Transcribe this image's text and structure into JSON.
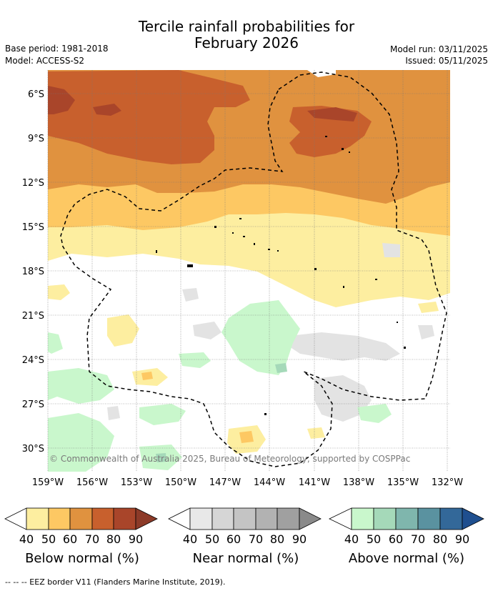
{
  "header": {
    "title_line1": "Tercile rainfall probabilities for",
    "title_line2": "February 2026",
    "base_period": "Base period: 1981-2018",
    "model": "Model: ACCESS-S2",
    "model_run": "Model run: 03/11/2025",
    "issued": "Issued: 05/11/2025"
  },
  "map": {
    "lat_labels": [
      "6°S",
      "9°S",
      "12°S",
      "15°S",
      "18°S",
      "21°S",
      "24°S",
      "27°S",
      "30°S"
    ],
    "lon_labels": [
      "159°W",
      "156°W",
      "153°W",
      "150°W",
      "147°W",
      "144°W",
      "141°W",
      "138°W",
      "135°W",
      "132°W"
    ],
    "copyright": "© Commonwealth of Australia 2025, Bureau of Meteorology, supported by COSPPac"
  },
  "legends": [
    {
      "title": "Below normal (%)",
      "ticks": [
        "40",
        "50",
        "60",
        "70",
        "80",
        "90"
      ],
      "colors": [
        "#fdeea0",
        "#fdc863",
        "#e0923f",
        "#c8602d",
        "#a9452a",
        "#8c3a28"
      ]
    },
    {
      "title": "Near normal (%)",
      "ticks": [
        "40",
        "50",
        "60",
        "70",
        "80",
        "90"
      ],
      "colors": [
        "#e8e8e8",
        "#d6d6d6",
        "#c4c4c4",
        "#b2b2b2",
        "#a0a0a0",
        "#8a8a8a"
      ]
    },
    {
      "title": "Above normal (%)",
      "ticks": [
        "40",
        "50",
        "60",
        "70",
        "80",
        "90"
      ],
      "colors": [
        "#c9f7cc",
        "#a5d9b9",
        "#7fb6ad",
        "#5a92a0",
        "#336899",
        "#1f4f8f"
      ]
    }
  ],
  "footer": {
    "eez_note": "--  --  -- EEZ border V11 (Flanders Marine Institute, 2019)."
  }
}
